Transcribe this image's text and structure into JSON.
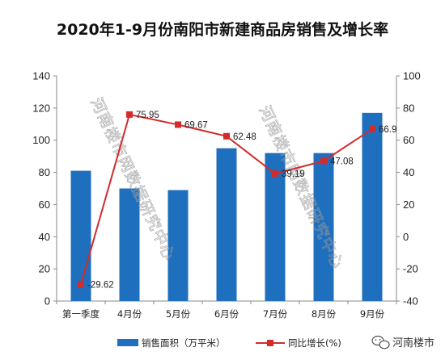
{
  "chart_data": {
    "type": "bar+line",
    "title": "2020年1-9月份南阳市新建商品房销售及增长率",
    "categories": [
      "第一季度",
      "4月份",
      "5月份",
      "6月份",
      "7月份",
      "8月份",
      "9月份"
    ],
    "series": [
      {
        "name": "销售面积（万平米）",
        "type": "bar",
        "axis": "left",
        "color": "#1f6fbf",
        "values": [
          81,
          70,
          69,
          95,
          92,
          92,
          117
        ]
      },
      {
        "name": "同比增长(%)",
        "type": "line",
        "axis": "right",
        "color": "#d42a2a",
        "values": [
          -29.62,
          75.95,
          69.67,
          62.48,
          39.19,
          47.08,
          66.9
        ],
        "labels": [
          "-29.62",
          "75.95",
          "69.67",
          "62.48",
          "39.19",
          "47.08",
          "66.9"
        ]
      }
    ],
    "y_left": {
      "min": 0,
      "max": 140,
      "ticks": [
        "0",
        "20",
        "40",
        "60",
        "80",
        "100",
        "120",
        "140"
      ]
    },
    "y_right": {
      "min": -40,
      "max": 100,
      "ticks": [
        "-40",
        "-20",
        "0",
        "20",
        "40",
        "60",
        "80",
        "100"
      ]
    },
    "grid": false,
    "legend": "bottom",
    "watermarks": [
      "河南楼市网数据研究中心",
      "河南楼市网数据研究中心"
    ]
  },
  "brand": {
    "name": "河南楼市",
    "icon": "wechat-icon"
  }
}
